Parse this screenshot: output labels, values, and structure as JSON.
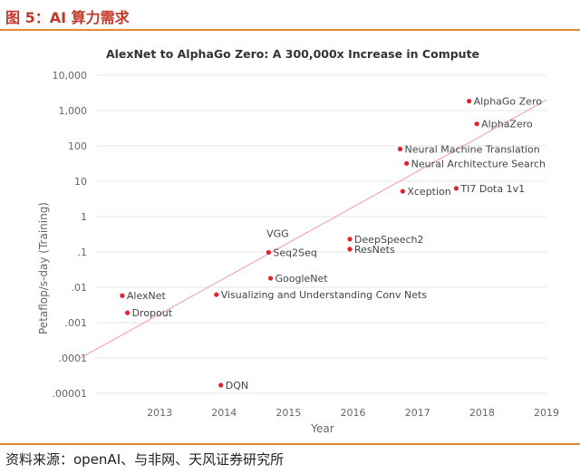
{
  "figure": {
    "title": "图 5：AI 算力需求",
    "source": "资料来源：openAI、与非网、天风证券研究所"
  },
  "chart_data": {
    "type": "scatter",
    "title": "AlexNet to AlphaGo Zero: A 300,000x Increase in Compute",
    "xlabel": "Year",
    "ylabel": "Petaflop/s-day (Training)",
    "xlim": [
      2012.0,
      2019.0
    ],
    "ylim": [
      1e-05,
      10000
    ],
    "yscale": "log",
    "grid": "horizontal",
    "x_ticks": [
      2013,
      2014,
      2015,
      2016,
      2017,
      2018,
      2019
    ],
    "y_ticks": [
      {
        "value": 1e-05,
        "label": ".00001"
      },
      {
        "value": 0.0001,
        "label": ".0001"
      },
      {
        "value": 0.001,
        "label": ".001"
      },
      {
        "value": 0.01,
        "label": ".01"
      },
      {
        "value": 0.1,
        "label": ".1"
      },
      {
        "value": 1,
        "label": "1"
      },
      {
        "value": 10,
        "label": "10"
      },
      {
        "value": 100,
        "label": "100"
      },
      {
        "value": 1000,
        "label": "1,000"
      },
      {
        "value": 10000,
        "label": "10,000"
      }
    ],
    "point_color": "#e0242b",
    "trend_color": "#f0a8c0",
    "trend": {
      "x": [
        2011.75,
        2019.0
      ],
      "y": [
        9.5e-05,
        2000
      ]
    },
    "points": [
      {
        "label": "AlexNet",
        "x": 2012.42,
        "y": 0.0058,
        "label_pos": "right"
      },
      {
        "label": "Dropout",
        "x": 2012.5,
        "y": 0.0019,
        "label_pos": "right"
      },
      {
        "label": "DQN",
        "x": 2013.95,
        "y": 1.7e-05,
        "label_pos": "right"
      },
      {
        "label": "Visualizing and Understanding Conv Nets",
        "x": 2013.88,
        "y": 0.0062,
        "label_pos": "right"
      },
      {
        "label": "Seq2Seq",
        "x": 2014.69,
        "y": 0.097,
        "label_pos": "right"
      },
      {
        "label": "VGG",
        "x": 2014.69,
        "y": 0.097,
        "label_pos": "above"
      },
      {
        "label": "GoogleNet",
        "x": 2014.72,
        "y": 0.018,
        "label_pos": "right"
      },
      {
        "label": "DeepSpeech2",
        "x": 2015.95,
        "y": 0.23,
        "label_pos": "right"
      },
      {
        "label": "ResNets",
        "x": 2015.95,
        "y": 0.12,
        "label_pos": "right"
      },
      {
        "label": "Neural Machine Translation",
        "x": 2016.73,
        "y": 82,
        "label_pos": "right"
      },
      {
        "label": "Neural Architecture Search",
        "x": 2016.83,
        "y": 32,
        "label_pos": "right"
      },
      {
        "label": "Xception",
        "x": 2016.77,
        "y": 5.2,
        "label_pos": "right"
      },
      {
        "label": "TI7 Dota 1v1",
        "x": 2017.6,
        "y": 6.3,
        "label_pos": "right"
      },
      {
        "label": "AlphaGo Zero",
        "x": 2017.8,
        "y": 1850,
        "label_pos": "right"
      },
      {
        "label": "AlphaZero",
        "x": 2017.92,
        "y": 420,
        "label_pos": "right"
      }
    ]
  }
}
